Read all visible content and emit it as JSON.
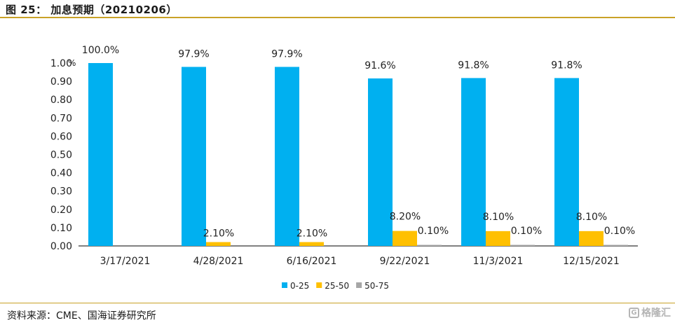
{
  "figure": {
    "title": "图 25：  加息预期（20210206）",
    "source": "资料来源：CME、国海证券研究所",
    "watermark": "格隆汇"
  },
  "colors": {
    "s0": "#00b0f0",
    "s1": "#ffc000",
    "s2": "#a6a6a6",
    "axis": "#000000",
    "rule": "#c9a227"
  },
  "chart_data": {
    "type": "bar",
    "title": "",
    "xlabel": "",
    "ylabel": "%",
    "ylim": [
      0,
      1.0
    ],
    "yticks": [
      "0.00",
      "0.10",
      "0.20",
      "0.30",
      "0.40",
      "0.50",
      "0.60",
      "0.70",
      "0.80",
      "0.90",
      "1.00"
    ],
    "grid": false,
    "legend_position": "bottom",
    "categories": [
      "3/17/2021",
      "4/28/2021",
      "6/16/2021",
      "9/22/2021",
      "11/3/2021",
      "12/15/2021"
    ],
    "series": [
      {
        "name": "0-25",
        "values": [
          1.0,
          0.979,
          0.979,
          0.916,
          0.918,
          0.918
        ],
        "labels": [
          "100.0%",
          "97.9%",
          "97.9%",
          "91.6%",
          "91.8%",
          "91.8%"
        ]
      },
      {
        "name": "25-50",
        "values": [
          0,
          0.021,
          0.021,
          0.082,
          0.081,
          0.081
        ],
        "labels": [
          "",
          "2.10%",
          "2.10%",
          "8.20%",
          "8.10%",
          "8.10%"
        ]
      },
      {
        "name": "50-75",
        "values": [
          0,
          0,
          0,
          0.001,
          0.001,
          0.001
        ],
        "labels": [
          "",
          "",
          "",
          "0.10%",
          "0.10%",
          "0.10%"
        ]
      }
    ]
  }
}
